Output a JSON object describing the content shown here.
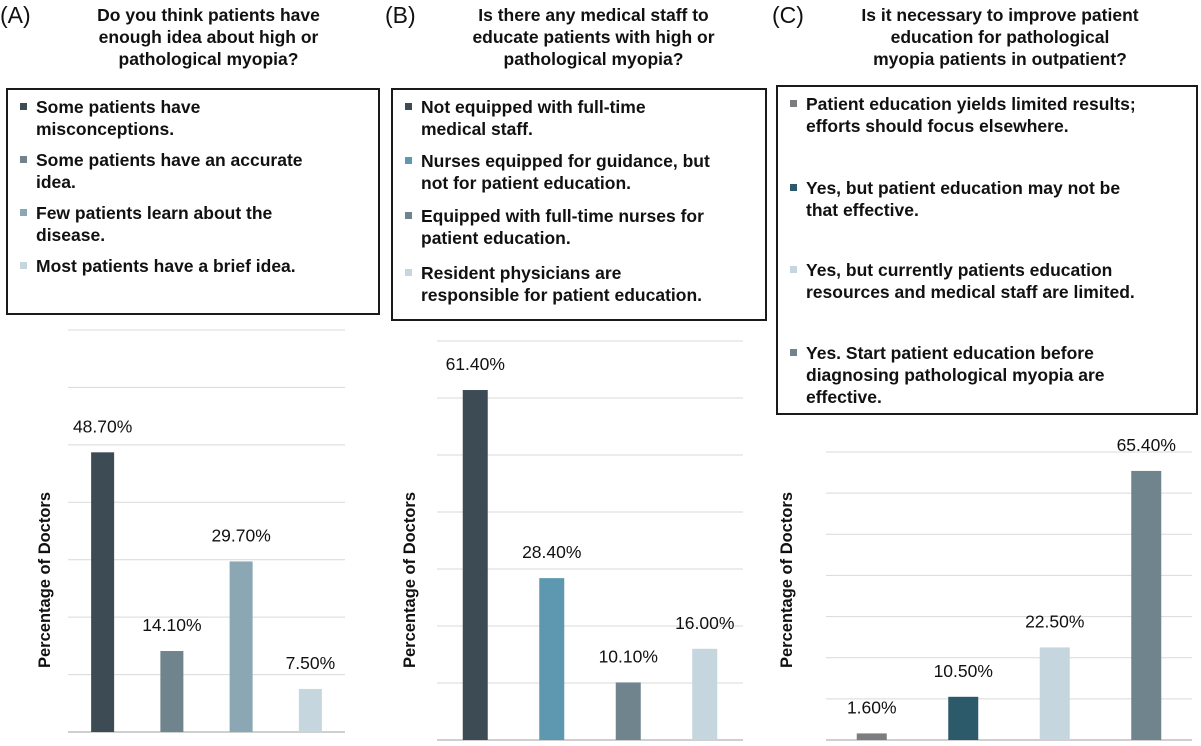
{
  "panels": [
    {
      "letter": "(A)",
      "question": [
        "Do you think patients have",
        "enough idea about high or",
        "pathological myopia?"
      ],
      "legend": [
        {
          "lines": [
            "Some patients have",
            "misconceptions."
          ],
          "color": "#3d4b55"
        },
        {
          "lines": [
            "Some patients have an accurate",
            "idea."
          ],
          "color": "#6f848d"
        },
        {
          "lines": [
            "Few patients learn about the",
            "disease."
          ],
          "color": "#8aa7b3"
        },
        {
          "lines": [
            "Most patients have a brief idea."
          ],
          "color": "#c6d6de"
        }
      ]
    },
    {
      "letter": "(B)",
      "question": [
        "Is there any medical staff to",
        "educate patients with high or",
        "pathological myopia?"
      ],
      "legend": [
        {
          "lines": [
            "Not equipped with full-time",
            "medical staff."
          ],
          "color": "#3d4b55"
        },
        {
          "lines": [
            "Nurses equipped for guidance, but",
            "not for patient education."
          ],
          "color": "#5d98b0"
        },
        {
          "lines": [
            "Equipped with full-time nurses for",
            "patient education."
          ],
          "color": "#6f848d"
        },
        {
          "lines": [
            "Resident physicians are",
            "responsible for patient education."
          ],
          "color": "#c6d6de"
        }
      ]
    },
    {
      "letter": "(C)",
      "question": [
        "Is it necessary to improve patient",
        "education for pathological",
        "myopia patients in outpatient?"
      ],
      "legend": [
        {
          "lines": [
            "Patient education yields limited results;",
            "efforts should focus elsewhere."
          ],
          "color": "#7b7d80"
        },
        {
          "lines": [
            "Yes, but patient education may not be",
            "that effective."
          ],
          "color": "#2d5a6b"
        },
        {
          "lines": [
            "Yes, but currently patients education",
            "resources and medical staff are limited."
          ],
          "color": "#c6d6de"
        },
        {
          "lines": [
            "Yes. Start patient education before",
            "diagnosing pathological myopia are",
            "effective."
          ],
          "color": "#6f848d"
        }
      ]
    }
  ],
  "chart_data": [
    {
      "type": "bar",
      "title": "",
      "xlabel": "",
      "ylabel": "Percentage of Doctors",
      "ylim": [
        0,
        70
      ],
      "grid": true,
      "categories": [
        "Some patients have misconceptions.",
        "Some patients have an accurate idea.",
        "Few patients learn about the disease.",
        "Most patients have a brief idea."
      ],
      "values": [
        48.7,
        14.1,
        29.7,
        7.5
      ],
      "labels": [
        "48.70%",
        "14.10%",
        "29.70%",
        "7.50%"
      ],
      "colors": [
        "#3d4b55",
        "#6f848d",
        "#8aa7b3",
        "#c6d6de"
      ]
    },
    {
      "type": "bar",
      "title": "",
      "xlabel": "",
      "ylabel": "Percentage of Doctors",
      "ylim": [
        0,
        70
      ],
      "grid": true,
      "categories": [
        "Not equipped with full-time medical staff.",
        "Nurses equipped for guidance, but not for patient education.",
        "Equipped with full-time nurses for patient education.",
        "Resident physicians are responsible for patient education."
      ],
      "values": [
        61.4,
        28.4,
        10.1,
        16.0
      ],
      "labels": [
        "61.40%",
        "28.40%",
        "10.10%",
        "16.00%"
      ],
      "colors": [
        "#3d4b55",
        "#5d98b0",
        "#6f848d",
        "#c6d6de"
      ]
    },
    {
      "type": "bar",
      "title": "",
      "xlabel": "",
      "ylabel": "Percentage of Doctors",
      "ylim": [
        0,
        70
      ],
      "grid": true,
      "categories": [
        "Patient education yields limited results; efforts should focus elsewhere.",
        "Yes, but patient education may not be that effective.",
        "Yes, but currently patients education resources and medical staff are limited.",
        "Yes. Start patient education before diagnosing pathological myopia are effective."
      ],
      "values": [
        1.6,
        10.5,
        22.5,
        65.4
      ],
      "labels": [
        "1.60%",
        "10.50%",
        "22.50%",
        "65.40%"
      ],
      "colors": [
        "#7b7d80",
        "#2d5a6b",
        "#c6d6de",
        "#6f848d"
      ]
    }
  ]
}
